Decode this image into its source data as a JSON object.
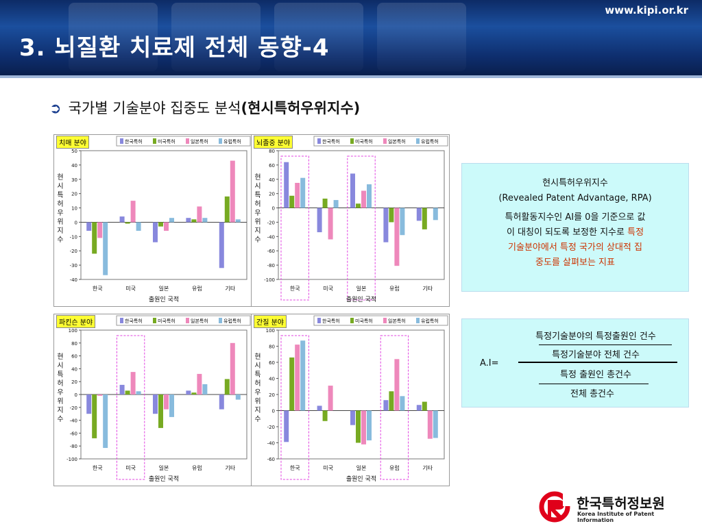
{
  "header": {
    "site_url": "www.kipi.or.kr",
    "title": "3. 뇌질환 치료제 전체 동향-4"
  },
  "subtitle": {
    "prefix": "국가별 기술분야 집중도 분석",
    "highlight": "(현시특허우위지수)"
  },
  "colors": {
    "korea": "#8888dd",
    "us": "#77aa22",
    "japan": "#ee88bb",
    "europe": "#88bbdd",
    "highlight_box": "#e040e0",
    "accent_text": "#cc3300"
  },
  "chart_data": [
    {
      "type": "bar",
      "tag": "치매 분야",
      "categories": [
        "한국",
        "미국",
        "일본",
        "유럽",
        "기타"
      ],
      "series": [
        {
          "name": "한국특허",
          "values": [
            -6,
            4,
            -14,
            3,
            -32
          ]
        },
        {
          "name": "미국특허",
          "values": [
            -22,
            -1,
            -3,
            2,
            18
          ]
        },
        {
          "name": "일본특허",
          "values": [
            -11,
            15,
            -6,
            11,
            43
          ]
        },
        {
          "name": "유럽특허",
          "values": [
            -37,
            -6,
            3,
            3,
            2
          ]
        }
      ],
      "ylabel": "현시특허우위지수",
      "xlabel": "출원인 국적",
      "ylim": [
        -40,
        50
      ],
      "yticks": [
        "50",
        "40",
        "30",
        "20",
        "10",
        "0",
        "-10",
        "-20",
        "-30",
        "-40"
      ],
      "highlight_categories": []
    },
    {
      "type": "bar",
      "tag": "뇌졸중 분야",
      "categories": [
        "한국",
        "미국",
        "일본",
        "유럽",
        "기타"
      ],
      "series": [
        {
          "name": "한국특허",
          "values": [
            64,
            -34,
            48,
            -48,
            -18
          ]
        },
        {
          "name": "미국특허",
          "values": [
            17,
            13,
            6,
            -20,
            -30
          ]
        },
        {
          "name": "일본특허",
          "values": [
            35,
            -44,
            24,
            -81,
            0
          ]
        },
        {
          "name": "유럽특허",
          "values": [
            42,
            11,
            33,
            -38,
            -17
          ]
        }
      ],
      "ylabel": "현시특허우위지수",
      "xlabel": "출원인 국적",
      "ylim": [
        -100,
        80
      ],
      "yticks": [
        "80",
        "60",
        "40",
        "20",
        "0",
        "-20",
        "-40",
        "-60",
        "-80",
        "-100"
      ],
      "highlight_categories": [
        0,
        2
      ]
    },
    {
      "type": "bar",
      "tag": "파킨슨 분야",
      "categories": [
        "한국",
        "미국",
        "일본",
        "유럽",
        "기타"
      ],
      "series": [
        {
          "name": "한국특허",
          "values": [
            -30,
            15,
            -30,
            6,
            -23
          ]
        },
        {
          "name": "미국특허",
          "values": [
            -68,
            6,
            -52,
            3,
            24
          ]
        },
        {
          "name": "일본특허",
          "values": [
            -2,
            35,
            -23,
            32,
            80
          ]
        },
        {
          "name": "유럽특허",
          "values": [
            -83,
            5,
            -35,
            16,
            -8
          ]
        }
      ],
      "ylabel": "현시특허우위지수",
      "xlabel": "출원인 국적",
      "ylim": [
        -100,
        100
      ],
      "yticks": [
        "100",
        "80",
        "60",
        "40",
        "20",
        "0",
        "-20",
        "-40",
        "-60",
        "-80",
        "-100"
      ],
      "highlight_categories": [
        1
      ]
    },
    {
      "type": "bar",
      "tag": "간질 분야",
      "categories": [
        "한국",
        "미국",
        "일본",
        "유럽",
        "기타"
      ],
      "series": [
        {
          "name": "한국특허",
          "values": [
            -39,
            6,
            -18,
            13,
            7
          ]
        },
        {
          "name": "미국특허",
          "values": [
            66,
            -13,
            -40,
            24,
            11
          ]
        },
        {
          "name": "일본특허",
          "values": [
            82,
            31,
            -42,
            64,
            -35
          ]
        },
        {
          "name": "유럽특허",
          "values": [
            87,
            0,
            -37,
            18,
            -34
          ]
        }
      ],
      "ylabel": "현시특허우위지수",
      "xlabel": "출원인 국적",
      "ylim": [
        -60,
        100
      ],
      "yticks": [
        "100",
        "80",
        "60",
        "40",
        "20",
        "0",
        "-20",
        "-40",
        "-60"
      ],
      "highlight_categories": [
        0,
        3
      ]
    }
  ],
  "info_rpa": {
    "title": "현시특허우위지수",
    "subtitle": "(Revealed Patent Advantage, RPA)",
    "line1": "특허활동지수인 AI를 0을 기준으로 값",
    "line2_plain": "이 대칭이 되도록 보정한 지수로 ",
    "line2_highlight": "특정",
    "line3_highlight": "기술분야에서 특정 국가의 상대적 집",
    "line4_highlight": "중도를 살펴보는 지표"
  },
  "info_formula": {
    "lhs": "A.I=",
    "num_top": "특정기술분야의 특정출원인 건수",
    "num_bottom": "특정기술분야 전체 건수",
    "den_top": "특정 출원인 총건수",
    "den_bottom": "전체 총건수"
  },
  "logo": {
    "name_ko": "한국특허정보원",
    "name_en": "Korea Institute of Patent Information"
  }
}
